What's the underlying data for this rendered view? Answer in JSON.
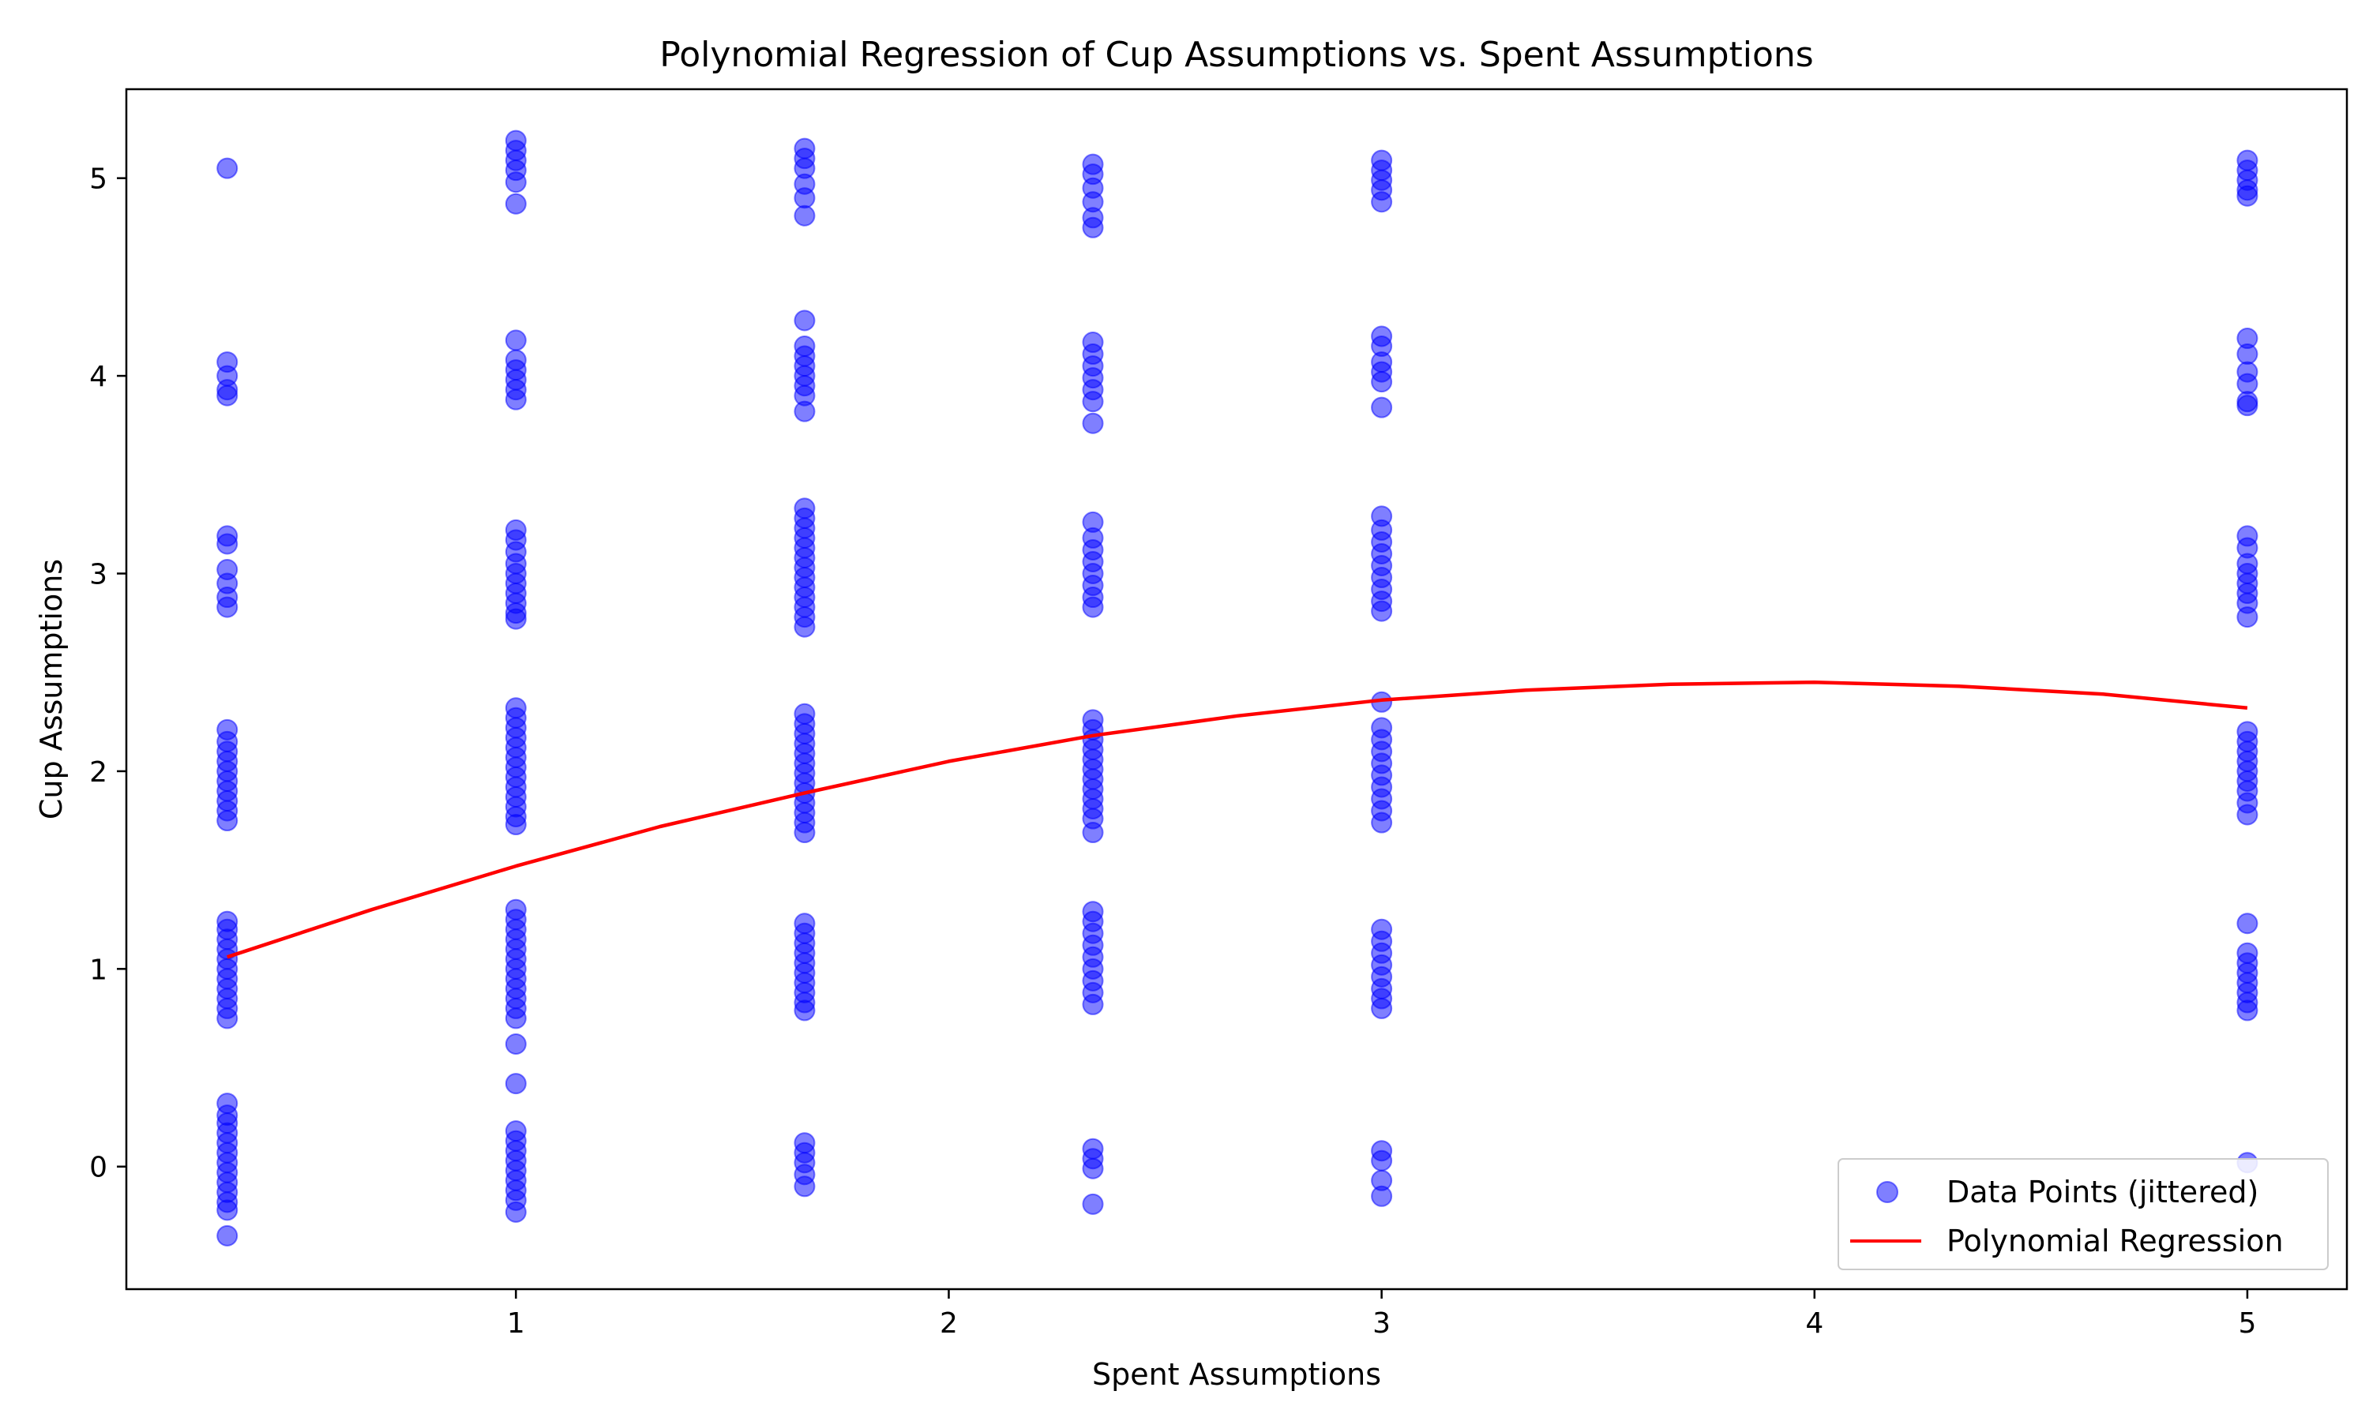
{
  "chart_data": {
    "type": "scatter",
    "title": "Polynomial Regression of Cup Assumptions vs. Spent Assumptions",
    "xlabel": "Spent Assumptions",
    "ylabel": "Cup Assumptions",
    "xlim": [
      0.1,
      5.23
    ],
    "ylim": [
      -0.62,
      5.45
    ],
    "xticks": [
      1,
      2,
      3,
      4,
      5
    ],
    "yticks": [
      0,
      1,
      2,
      3,
      4,
      5
    ],
    "grid": false,
    "legend_position": "lower-right",
    "colors": {
      "scatter": "#0000ff",
      "line": "#ff0000"
    },
    "series": [
      {
        "name": "Data Points (jittered)",
        "kind": "scatter",
        "points": [
          [
            0.333,
            5.05
          ],
          [
            0.333,
            4.07
          ],
          [
            0.333,
            4.0
          ],
          [
            0.333,
            3.93
          ],
          [
            0.333,
            3.9
          ],
          [
            0.333,
            3.19
          ],
          [
            0.333,
            3.15
          ],
          [
            0.333,
            3.02
          ],
          [
            0.333,
            2.95
          ],
          [
            0.333,
            2.88
          ],
          [
            0.333,
            2.83
          ],
          [
            0.333,
            2.21
          ],
          [
            0.333,
            2.15
          ],
          [
            0.333,
            2.1
          ],
          [
            0.333,
            2.05
          ],
          [
            0.333,
            2.0
          ],
          [
            0.333,
            1.95
          ],
          [
            0.333,
            1.9
          ],
          [
            0.333,
            1.85
          ],
          [
            0.333,
            1.8
          ],
          [
            0.333,
            1.75
          ],
          [
            0.333,
            1.24
          ],
          [
            0.333,
            1.2
          ],
          [
            0.333,
            1.15
          ],
          [
            0.333,
            1.1
          ],
          [
            0.333,
            1.05
          ],
          [
            0.333,
            1.0
          ],
          [
            0.333,
            0.95
          ],
          [
            0.333,
            0.9
          ],
          [
            0.333,
            0.85
          ],
          [
            0.333,
            0.8
          ],
          [
            0.333,
            0.75
          ],
          [
            0.333,
            0.32
          ],
          [
            0.333,
            0.26
          ],
          [
            0.333,
            0.22
          ],
          [
            0.333,
            0.17
          ],
          [
            0.333,
            0.12
          ],
          [
            0.333,
            0.07
          ],
          [
            0.333,
            0.02
          ],
          [
            0.333,
            -0.03
          ],
          [
            0.333,
            -0.08
          ],
          [
            0.333,
            -0.13
          ],
          [
            0.333,
            -0.18
          ],
          [
            0.333,
            -0.22
          ],
          [
            0.333,
            -0.35
          ],
          [
            1.0,
            5.19
          ],
          [
            1.0,
            5.14
          ],
          [
            1.0,
            5.09
          ],
          [
            1.0,
            5.04
          ],
          [
            1.0,
            4.98
          ],
          [
            1.0,
            4.87
          ],
          [
            1.0,
            4.18
          ],
          [
            1.0,
            4.08
          ],
          [
            1.0,
            4.03
          ],
          [
            1.0,
            3.98
          ],
          [
            1.0,
            3.93
          ],
          [
            1.0,
            3.88
          ],
          [
            1.0,
            3.22
          ],
          [
            1.0,
            3.17
          ],
          [
            1.0,
            3.11
          ],
          [
            1.0,
            3.05
          ],
          [
            1.0,
            3.0
          ],
          [
            1.0,
            2.95
          ],
          [
            1.0,
            2.9
          ],
          [
            1.0,
            2.85
          ],
          [
            1.0,
            2.8
          ],
          [
            1.0,
            2.77
          ],
          [
            1.0,
            2.32
          ],
          [
            1.0,
            2.27
          ],
          [
            1.0,
            2.22
          ],
          [
            1.0,
            2.17
          ],
          [
            1.0,
            2.12
          ],
          [
            1.0,
            2.07
          ],
          [
            1.0,
            2.02
          ],
          [
            1.0,
            1.97
          ],
          [
            1.0,
            1.92
          ],
          [
            1.0,
            1.87
          ],
          [
            1.0,
            1.82
          ],
          [
            1.0,
            1.77
          ],
          [
            1.0,
            1.73
          ],
          [
            1.0,
            1.3
          ],
          [
            1.0,
            1.25
          ],
          [
            1.0,
            1.2
          ],
          [
            1.0,
            1.15
          ],
          [
            1.0,
            1.1
          ],
          [
            1.0,
            1.05
          ],
          [
            1.0,
            1.0
          ],
          [
            1.0,
            0.95
          ],
          [
            1.0,
            0.9
          ],
          [
            1.0,
            0.85
          ],
          [
            1.0,
            0.8
          ],
          [
            1.0,
            0.75
          ],
          [
            1.0,
            0.62
          ],
          [
            1.0,
            0.42
          ],
          [
            1.0,
            0.18
          ],
          [
            1.0,
            0.13
          ],
          [
            1.0,
            0.08
          ],
          [
            1.0,
            0.03
          ],
          [
            1.0,
            -0.02
          ],
          [
            1.0,
            -0.07
          ],
          [
            1.0,
            -0.12
          ],
          [
            1.0,
            -0.17
          ],
          [
            1.0,
            -0.23
          ],
          [
            1.667,
            5.15
          ],
          [
            1.667,
            5.1
          ],
          [
            1.667,
            5.05
          ],
          [
            1.667,
            4.97
          ],
          [
            1.667,
            4.9
          ],
          [
            1.667,
            4.81
          ],
          [
            1.667,
            4.28
          ],
          [
            1.667,
            4.15
          ],
          [
            1.667,
            4.1
          ],
          [
            1.667,
            4.05
          ],
          [
            1.667,
            4.0
          ],
          [
            1.667,
            3.95
          ],
          [
            1.667,
            3.9
          ],
          [
            1.667,
            3.82
          ],
          [
            1.667,
            3.33
          ],
          [
            1.667,
            3.28
          ],
          [
            1.667,
            3.23
          ],
          [
            1.667,
            3.18
          ],
          [
            1.667,
            3.13
          ],
          [
            1.667,
            3.08
          ],
          [
            1.667,
            3.03
          ],
          [
            1.667,
            2.98
          ],
          [
            1.667,
            2.93
          ],
          [
            1.667,
            2.88
          ],
          [
            1.667,
            2.83
          ],
          [
            1.667,
            2.78
          ],
          [
            1.667,
            2.73
          ],
          [
            1.667,
            2.29
          ],
          [
            1.667,
            2.24
          ],
          [
            1.667,
            2.19
          ],
          [
            1.667,
            2.14
          ],
          [
            1.667,
            2.09
          ],
          [
            1.667,
            2.04
          ],
          [
            1.667,
            1.99
          ],
          [
            1.667,
            1.94
          ],
          [
            1.667,
            1.89
          ],
          [
            1.667,
            1.84
          ],
          [
            1.667,
            1.79
          ],
          [
            1.667,
            1.74
          ],
          [
            1.667,
            1.69
          ],
          [
            1.667,
            1.23
          ],
          [
            1.667,
            1.18
          ],
          [
            1.667,
            1.13
          ],
          [
            1.667,
            1.08
          ],
          [
            1.667,
            1.03
          ],
          [
            1.667,
            0.98
          ],
          [
            1.667,
            0.93
          ],
          [
            1.667,
            0.88
          ],
          [
            1.667,
            0.83
          ],
          [
            1.667,
            0.79
          ],
          [
            1.667,
            0.12
          ],
          [
            1.667,
            0.07
          ],
          [
            1.667,
            0.02
          ],
          [
            1.667,
            -0.04
          ],
          [
            1.667,
            -0.1
          ],
          [
            2.333,
            5.07
          ],
          [
            2.333,
            5.02
          ],
          [
            2.333,
            4.95
          ],
          [
            2.333,
            4.88
          ],
          [
            2.333,
            4.8
          ],
          [
            2.333,
            4.75
          ],
          [
            2.333,
            4.17
          ],
          [
            2.333,
            4.11
          ],
          [
            2.333,
            4.05
          ],
          [
            2.333,
            3.99
          ],
          [
            2.333,
            3.93
          ],
          [
            2.333,
            3.87
          ],
          [
            2.333,
            3.76
          ],
          [
            2.333,
            3.26
          ],
          [
            2.333,
            3.18
          ],
          [
            2.333,
            3.12
          ],
          [
            2.333,
            3.06
          ],
          [
            2.333,
            3.0
          ],
          [
            2.333,
            2.94
          ],
          [
            2.333,
            2.88
          ],
          [
            2.333,
            2.83
          ],
          [
            2.333,
            2.26
          ],
          [
            2.333,
            2.21
          ],
          [
            2.333,
            2.16
          ],
          [
            2.333,
            2.11
          ],
          [
            2.333,
            2.06
          ],
          [
            2.333,
            2.01
          ],
          [
            2.333,
            1.96
          ],
          [
            2.333,
            1.91
          ],
          [
            2.333,
            1.86
          ],
          [
            2.333,
            1.81
          ],
          [
            2.333,
            1.76
          ],
          [
            2.333,
            1.69
          ],
          [
            2.333,
            1.29
          ],
          [
            2.333,
            1.24
          ],
          [
            2.333,
            1.18
          ],
          [
            2.333,
            1.12
          ],
          [
            2.333,
            1.06
          ],
          [
            2.333,
            1.0
          ],
          [
            2.333,
            0.94
          ],
          [
            2.333,
            0.88
          ],
          [
            2.333,
            0.82
          ],
          [
            2.333,
            0.09
          ],
          [
            2.333,
            0.04
          ],
          [
            2.333,
            -0.01
          ],
          [
            2.333,
            -0.19
          ],
          [
            3.0,
            5.09
          ],
          [
            3.0,
            5.04
          ],
          [
            3.0,
            4.99
          ],
          [
            3.0,
            4.94
          ],
          [
            3.0,
            4.88
          ],
          [
            3.0,
            4.2
          ],
          [
            3.0,
            4.15
          ],
          [
            3.0,
            4.07
          ],
          [
            3.0,
            4.02
          ],
          [
            3.0,
            3.97
          ],
          [
            3.0,
            3.84
          ],
          [
            3.0,
            3.29
          ],
          [
            3.0,
            3.22
          ],
          [
            3.0,
            3.16
          ],
          [
            3.0,
            3.1
          ],
          [
            3.0,
            3.04
          ],
          [
            3.0,
            2.98
          ],
          [
            3.0,
            2.92
          ],
          [
            3.0,
            2.86
          ],
          [
            3.0,
            2.81
          ],
          [
            3.0,
            2.35
          ],
          [
            3.0,
            2.22
          ],
          [
            3.0,
            2.16
          ],
          [
            3.0,
            2.1
          ],
          [
            3.0,
            2.04
          ],
          [
            3.0,
            1.98
          ],
          [
            3.0,
            1.92
          ],
          [
            3.0,
            1.86
          ],
          [
            3.0,
            1.8
          ],
          [
            3.0,
            1.74
          ],
          [
            3.0,
            1.2
          ],
          [
            3.0,
            1.14
          ],
          [
            3.0,
            1.08
          ],
          [
            3.0,
            1.02
          ],
          [
            3.0,
            0.96
          ],
          [
            3.0,
            0.9
          ],
          [
            3.0,
            0.85
          ],
          [
            3.0,
            0.8
          ],
          [
            3.0,
            0.08
          ],
          [
            3.0,
            0.03
          ],
          [
            3.0,
            -0.07
          ],
          [
            3.0,
            -0.15
          ],
          [
            5.0,
            5.09
          ],
          [
            5.0,
            5.04
          ],
          [
            5.0,
            4.99
          ],
          [
            5.0,
            4.94
          ],
          [
            5.0,
            4.91
          ],
          [
            5.0,
            4.19
          ],
          [
            5.0,
            4.11
          ],
          [
            5.0,
            4.02
          ],
          [
            5.0,
            3.96
          ],
          [
            5.0,
            3.87
          ],
          [
            5.0,
            3.85
          ],
          [
            5.0,
            3.19
          ],
          [
            5.0,
            3.13
          ],
          [
            5.0,
            3.05
          ],
          [
            5.0,
            3.0
          ],
          [
            5.0,
            2.95
          ],
          [
            5.0,
            2.9
          ],
          [
            5.0,
            2.85
          ],
          [
            5.0,
            2.78
          ],
          [
            5.0,
            2.2
          ],
          [
            5.0,
            2.15
          ],
          [
            5.0,
            2.1
          ],
          [
            5.0,
            2.05
          ],
          [
            5.0,
            2.0
          ],
          [
            5.0,
            1.95
          ],
          [
            5.0,
            1.9
          ],
          [
            5.0,
            1.84
          ],
          [
            5.0,
            1.78
          ],
          [
            5.0,
            1.23
          ],
          [
            5.0,
            1.08
          ],
          [
            5.0,
            1.03
          ],
          [
            5.0,
            0.98
          ],
          [
            5.0,
            0.93
          ],
          [
            5.0,
            0.88
          ],
          [
            5.0,
            0.83
          ],
          [
            5.0,
            0.79
          ],
          [
            5.0,
            0.02
          ]
        ]
      },
      {
        "name": "Polynomial Regression",
        "kind": "line",
        "x": [
          0.333,
          0.667,
          1.0,
          1.333,
          1.667,
          2.0,
          2.333,
          2.667,
          3.0,
          3.333,
          3.667,
          4.0,
          4.333,
          4.667,
          5.0
        ],
        "y": [
          1.06,
          1.3,
          1.52,
          1.72,
          1.89,
          2.05,
          2.18,
          2.28,
          2.36,
          2.41,
          2.44,
          2.45,
          2.43,
          2.39,
          2.32
        ]
      }
    ]
  }
}
